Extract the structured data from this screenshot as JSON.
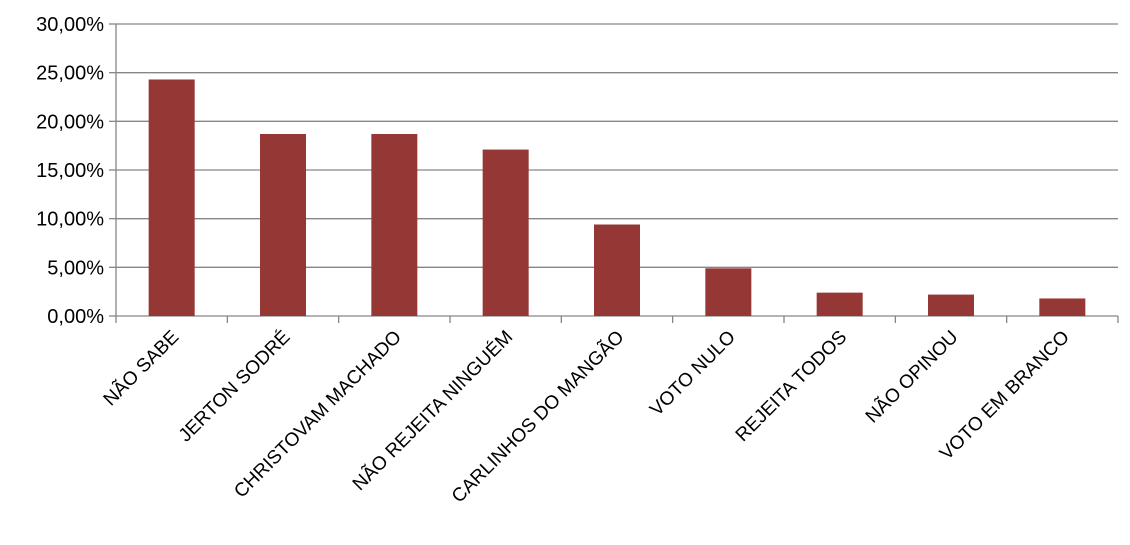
{
  "chart_data": {
    "type": "bar",
    "title": "",
    "xlabel": "",
    "ylabel": "",
    "categories": [
      "NÃO SABE",
      "JERTON SODRÉ",
      "CHRISTOVAM MACHADO",
      "NÃO REJEITA NINGUÉM",
      "CARLINHOS DO MANGÃO",
      "VOTO NULO",
      "REJEITA TODOS",
      "NÃO OPINOU",
      "VOTO EM BRANCO"
    ],
    "values": [
      24.3,
      18.7,
      18.7,
      17.1,
      9.4,
      4.9,
      2.4,
      2.2,
      1.8
    ],
    "ylim": [
      0,
      30
    ],
    "yticks": [
      0,
      5,
      10,
      15,
      20,
      25,
      30
    ],
    "ytick_labels": [
      "0,00%",
      "5,00%",
      "10,00%",
      "15,00%",
      "20,00%",
      "25,00%",
      "30,00%"
    ],
    "grid": true,
    "legend": "none",
    "colors": {
      "bar": "#953735",
      "grid": "#868686",
      "axis": "#868686"
    }
  }
}
